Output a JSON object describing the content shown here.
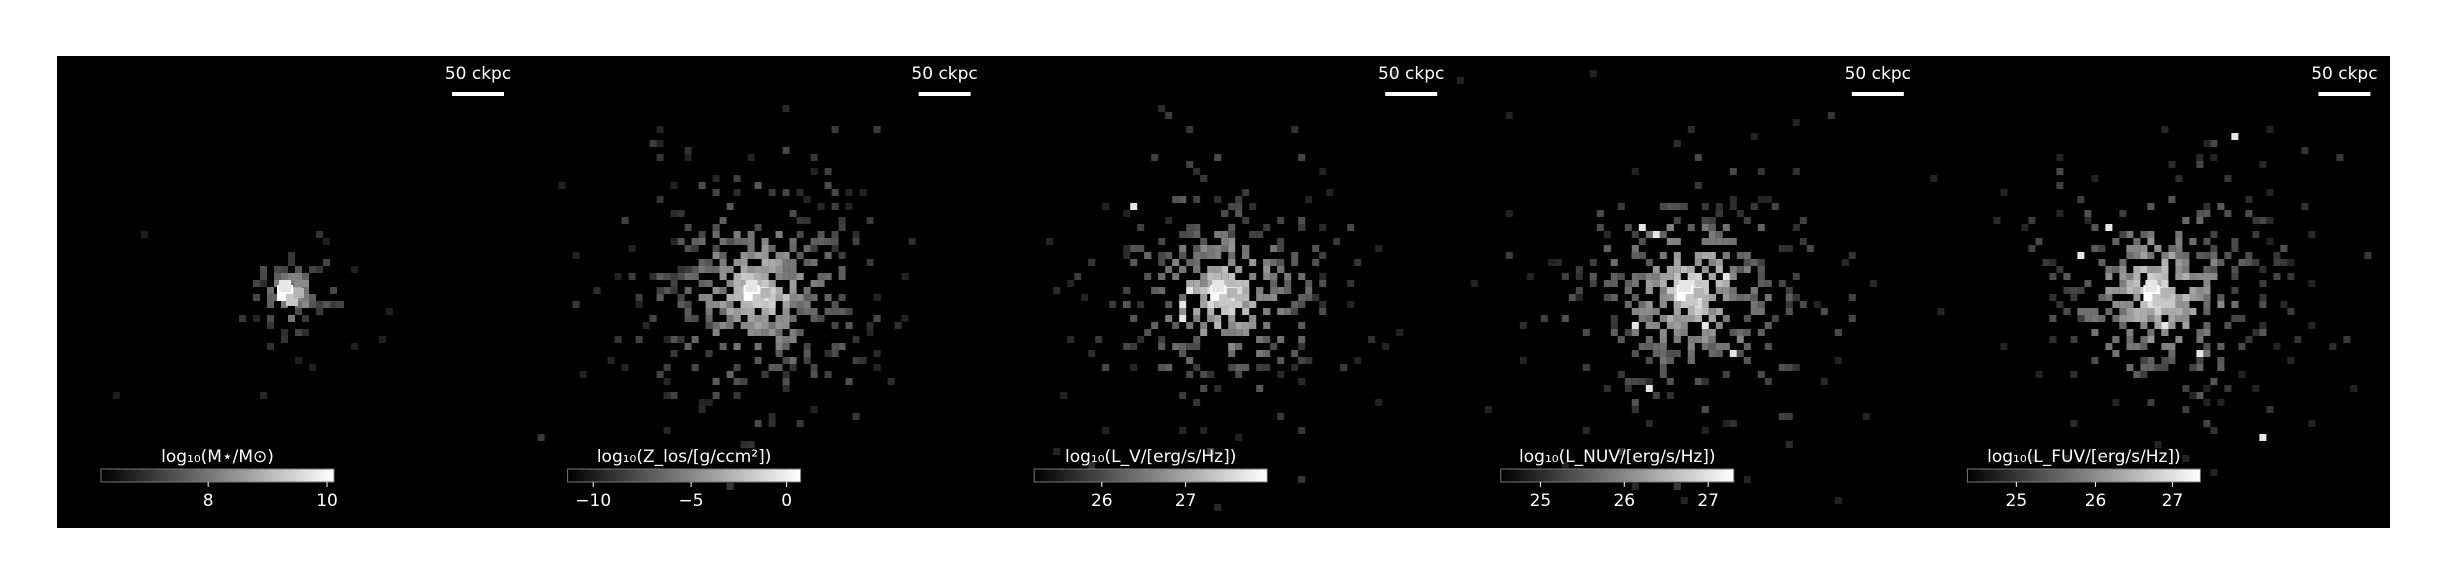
{
  "panels": [
    {
      "scale_bar": "50 ckpc",
      "colorbar": {
        "label": "log₁₀(M⋆/M⊙)",
        "ticks": [
          "8",
          "10"
        ]
      }
    },
    {
      "scale_bar": "50 ckpc",
      "colorbar": {
        "label": "log₁₀(Z_los/[g/ccm²])",
        "ticks": [
          "−10",
          "−5",
          "0"
        ]
      }
    },
    {
      "scale_bar": "50 ckpc",
      "colorbar": {
        "label": "log₁₀(L_V/[erg/s/Hz])",
        "ticks": [
          "26",
          "27"
        ]
      }
    },
    {
      "scale_bar": "50 ckpc",
      "colorbar": {
        "label": "log₁₀(L_NUV/[erg/s/Hz])",
        "ticks": [
          "25",
          "26",
          "27"
        ]
      }
    },
    {
      "scale_bar": "50 ckpc",
      "colorbar": {
        "label": "log₁₀(L_FUV/[erg/s/Hz])",
        "ticks": [
          "25",
          "26",
          "27"
        ]
      }
    }
  ]
}
